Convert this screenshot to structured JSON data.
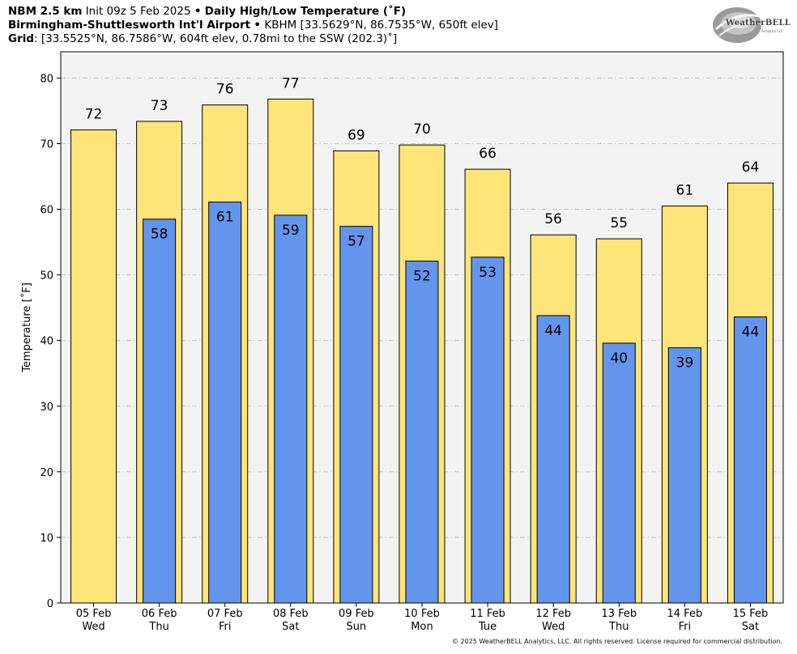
{
  "header": {
    "line1_model": "NBM 2.5 km",
    "line1_init": "Init 09z 5 Feb 2025",
    "line1_sep": "•",
    "line1_product": "Daily High/Low Temperature (˚F)",
    "line2_station": "Birmingham-Shuttlesworth Int'l Airport",
    "line2_sep": "•",
    "line2_info": "KBHM [33.5629°N, 86.7535°W, 650ft elev]",
    "line3_label": "Grid",
    "line3_info": ": [33.5525°N, 86.7586°W, 604ft elev, 0.78mi to the SSW (202.3)˚]"
  },
  "logo": {
    "text": "WeatherBELL",
    "subtext": "Analytics LLC"
  },
  "footer": {
    "copyright": "© 2025 WeatherBELL Analytics, LLC. All rights reserved. License required for commercial distribution."
  },
  "colors": {
    "high": "#FFE47A",
    "low": "#6495ED",
    "plot_bg": "#F3F3F3",
    "grid": "#B9B9B9"
  },
  "chart_data": {
    "type": "bar",
    "ylabel": "Temperature [˚F]",
    "ylim": [
      0,
      84
    ],
    "yticks": [
      0,
      10,
      20,
      30,
      40,
      50,
      60,
      70,
      80
    ],
    "grid": true,
    "categories": [
      {
        "date": "05 Feb",
        "day": "Wed"
      },
      {
        "date": "06 Feb",
        "day": "Thu"
      },
      {
        "date": "07 Feb",
        "day": "Fri"
      },
      {
        "date": "08 Feb",
        "day": "Sat"
      },
      {
        "date": "09 Feb",
        "day": "Sun"
      },
      {
        "date": "10 Feb",
        "day": "Mon"
      },
      {
        "date": "11 Feb",
        "day": "Tue"
      },
      {
        "date": "12 Feb",
        "day": "Wed"
      },
      {
        "date": "13 Feb",
        "day": "Thu"
      },
      {
        "date": "14 Feb",
        "day": "Fri"
      },
      {
        "date": "15 Feb",
        "day": "Sat"
      }
    ],
    "series": [
      {
        "key": "high",
        "values": [
          72.1,
          73.4,
          75.9,
          76.8,
          68.9,
          69.8,
          66.1,
          56.1,
          55.5,
          60.5,
          64.0
        ],
        "labels": [
          "72",
          "73",
          "76",
          "77",
          "69",
          "70",
          "66",
          "56",
          "55",
          "61",
          "64"
        ]
      },
      {
        "key": "low",
        "values": [
          null,
          58.5,
          61.1,
          59.1,
          57.4,
          52.1,
          52.7,
          43.8,
          39.6,
          38.9,
          43.6
        ],
        "labels": [
          null,
          "58",
          "61",
          "59",
          "57",
          "52",
          "53",
          "44",
          "40",
          "39",
          "44"
        ]
      }
    ]
  }
}
